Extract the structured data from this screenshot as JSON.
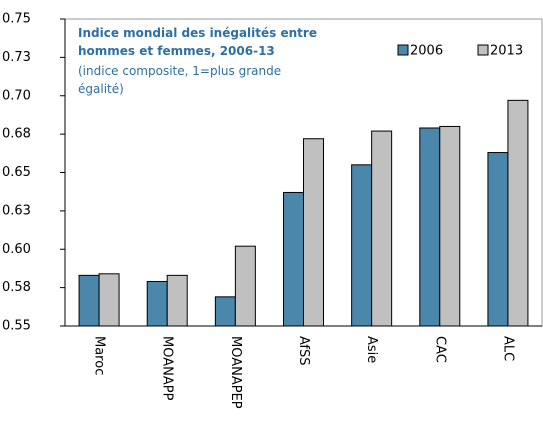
{
  "chart_data": {
    "type": "bar",
    "title": "Indice mondial des inégalités entre hommes et femmes, 2006-13",
    "subtitle": "(indice composite, 1=plus grande égalité)",
    "categories": [
      "Maroc",
      "MOANAPP",
      "MOANAPEP",
      "AfSS",
      "Asie",
      "CAC",
      "ALC"
    ],
    "series": [
      {
        "name": "2006",
        "color": "#4a87aa",
        "values": [
          0.583,
          0.579,
          0.569,
          0.637,
          0.655,
          0.679,
          0.663
        ]
      },
      {
        "name": "2013",
        "color": "#c0c0c0",
        "values": [
          0.584,
          0.583,
          0.602,
          0.672,
          0.677,
          0.68,
          0.697
        ]
      }
    ],
    "ylim": [
      0.55,
      0.75
    ],
    "yticks": [
      0.55,
      {
        "value": 0.575,
        "label": "0.58"
      },
      {
        "value": 0.6,
        "label": "0.60"
      },
      {
        "value": 0.625,
        "label": "0.63"
      },
      0.65,
      {
        "value": 0.675,
        "label": "0.68"
      },
      {
        "value": 0.7,
        "label": "0.70"
      },
      {
        "value": 0.725,
        "label": "0.73"
      },
      0.75
    ],
    "legend": "top-right"
  }
}
